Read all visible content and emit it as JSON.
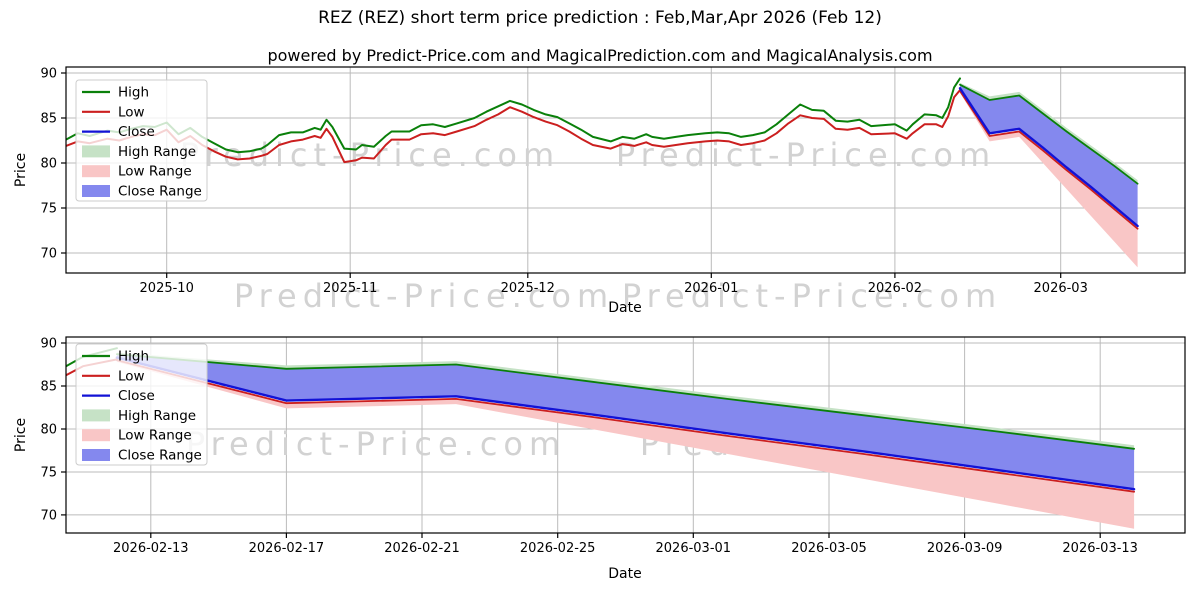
{
  "title": "REZ (REZ) short term price prediction : Feb,Mar,Apr 2026 (Feb 12)",
  "subtitle": "powered by Predict-Price.com and MagicalPrediction.com and MagicalAnalysis.com",
  "watermark": "Predict-Price.com",
  "colors": {
    "high": "#0a800a",
    "low": "#cb1f1f",
    "close": "#1212d6",
    "high_range": "#c6e2c6",
    "low_range": "#f9c6c6",
    "close_range": "#8488ee",
    "grid": "#bbbbbb",
    "spine": "#000000",
    "text": "#000000",
    "watermark": "#d2d2d2",
    "legend_border": "#cccccc"
  },
  "chart_data": {
    "type": "line",
    "legend": [
      {
        "label": "High",
        "swatch": "line",
        "color": "high"
      },
      {
        "label": "Low",
        "swatch": "line",
        "color": "low"
      },
      {
        "label": "Close",
        "swatch": "line",
        "color": "close"
      },
      {
        "label": "High Range",
        "swatch": "patch",
        "color": "high_range"
      },
      {
        "label": "Low Range",
        "swatch": "patch",
        "color": "low_range"
      },
      {
        "label": "Close Range",
        "swatch": "patch",
        "color": "close_range"
      }
    ],
    "charts": [
      {
        "name": "overview",
        "ylabel": "Price",
        "xlabel": "Date",
        "ylim": [
          67.78,
          90.67
        ],
        "yticks": [
          70,
          75,
          80,
          85,
          90
        ],
        "xlim": [
          "2025-09-14",
          "2026-03-22"
        ],
        "xticks": [
          {
            "date": "2025-10-01",
            "label": "2025-10"
          },
          {
            "date": "2025-11-01",
            "label": "2025-11"
          },
          {
            "date": "2025-12-01",
            "label": "2025-12"
          },
          {
            "date": "2026-01-01",
            "label": "2026-01"
          },
          {
            "date": "2026-02-01",
            "label": "2026-02"
          },
          {
            "date": "2026-03-01",
            "label": "2026-03"
          }
        ]
      },
      {
        "name": "prediction-zoom",
        "ylabel": "Price",
        "xlabel": "Date",
        "ylim": [
          67.9,
          90.7
        ],
        "yticks": [
          70,
          75,
          80,
          85,
          90
        ],
        "xlim": [
          "2026-02-10T12:00:00Z",
          "2026-03-15T12:00:00Z"
        ],
        "xticks": [
          {
            "date": "2026-02-13",
            "label": "2026-02-13"
          },
          {
            "date": "2026-02-17",
            "label": "2026-02-17"
          },
          {
            "date": "2026-02-21",
            "label": "2026-02-21"
          },
          {
            "date": "2026-02-25",
            "label": "2026-02-25"
          },
          {
            "date": "2026-03-01",
            "label": "2026-03-01"
          },
          {
            "date": "2026-03-05",
            "label": "2026-03-05"
          },
          {
            "date": "2026-03-09",
            "label": "2026-03-09"
          },
          {
            "date": "2026-03-13",
            "label": "2026-03-13"
          }
        ]
      }
    ],
    "history": {
      "dates": [
        "2025-09-14",
        "2025-09-16",
        "2025-09-18",
        "2025-09-21",
        "2025-09-23",
        "2025-09-25",
        "2025-09-27",
        "2025-09-29",
        "2025-10-01",
        "2025-10-03",
        "2025-10-05",
        "2025-10-07",
        "2025-10-09",
        "2025-10-11",
        "2025-10-13",
        "2025-10-15",
        "2025-10-17",
        "2025-10-18",
        "2025-10-20",
        "2025-10-22",
        "2025-10-24",
        "2025-10-26",
        "2025-10-27",
        "2025-10-28",
        "2025-10-29",
        "2025-10-31",
        "2025-11-02",
        "2025-11-03",
        "2025-11-05",
        "2025-11-07",
        "2025-11-08",
        "2025-11-11",
        "2025-11-13",
        "2025-11-15",
        "2025-11-17",
        "2025-11-19",
        "2025-11-22",
        "2025-11-24",
        "2025-11-26",
        "2025-11-28",
        "2025-11-30",
        "2025-12-02",
        "2025-12-04",
        "2025-12-06",
        "2025-12-08",
        "2025-12-10",
        "2025-12-12",
        "2025-12-15",
        "2025-12-17",
        "2025-12-19",
        "2025-12-21",
        "2025-12-22",
        "2025-12-24",
        "2025-12-26",
        "2025-12-28",
        "2025-12-31",
        "2026-01-02",
        "2026-01-04",
        "2026-01-06",
        "2026-01-08",
        "2026-01-10",
        "2026-01-12",
        "2026-01-14",
        "2026-01-16",
        "2026-01-18",
        "2026-01-20",
        "2026-01-22",
        "2026-01-24",
        "2026-01-26",
        "2026-01-28",
        "2026-02-01",
        "2026-02-03",
        "2026-02-04",
        "2026-02-06",
        "2026-02-08",
        "2026-02-09",
        "2026-02-10",
        "2026-02-11",
        "2026-02-12"
      ],
      "high": [
        82.6,
        83.3,
        83.0,
        83.6,
        83.4,
        83.8,
        84.1,
        84.0,
        84.5,
        83.2,
        83.9,
        82.9,
        82.2,
        81.5,
        81.2,
        81.3,
        81.6,
        82.0,
        83.1,
        83.4,
        83.4,
        83.9,
        83.7,
        84.8,
        84.0,
        81.6,
        81.5,
        82.0,
        81.8,
        83.0,
        83.5,
        83.5,
        84.2,
        84.3,
        84.0,
        84.4,
        85.0,
        85.7,
        86.3,
        86.9,
        86.5,
        85.9,
        85.4,
        85.1,
        84.4,
        83.7,
        82.9,
        82.4,
        82.9,
        82.7,
        83.2,
        82.9,
        82.7,
        82.9,
        83.1,
        83.3,
        83.4,
        83.3,
        82.9,
        83.1,
        83.4,
        84.3,
        85.4,
        86.5,
        85.9,
        85.8,
        84.7,
        84.6,
        84.8,
        84.1,
        84.3,
        83.6,
        84.3,
        85.4,
        85.3,
        85.0,
        86.2,
        88.4,
        89.4
      ],
      "low": [
        81.9,
        82.4,
        82.2,
        82.7,
        82.5,
        82.9,
        83.2,
        83.1,
        83.7,
        82.3,
        83.0,
        82.0,
        81.3,
        80.7,
        80.4,
        80.5,
        80.8,
        81.0,
        82.0,
        82.4,
        82.6,
        83.0,
        82.8,
        83.8,
        82.9,
        80.1,
        80.3,
        80.6,
        80.5,
        82.0,
        82.6,
        82.6,
        83.2,
        83.3,
        83.1,
        83.5,
        84.1,
        84.8,
        85.4,
        86.2,
        85.7,
        85.1,
        84.6,
        84.2,
        83.5,
        82.7,
        82.0,
        81.6,
        82.1,
        81.9,
        82.3,
        82.0,
        81.8,
        82.0,
        82.2,
        82.4,
        82.5,
        82.4,
        82.0,
        82.2,
        82.5,
        83.3,
        84.4,
        85.3,
        85.0,
        84.9,
        83.8,
        83.7,
        83.9,
        83.2,
        83.3,
        82.7,
        83.3,
        84.3,
        84.3,
        84.0,
        85.2,
        87.3,
        88.1
      ]
    },
    "prediction": {
      "dates": [
        "2026-02-12",
        "2026-02-17",
        "2026-02-22",
        "2026-02-26",
        "2026-03-02",
        "2026-03-06",
        "2026-03-10",
        "2026-03-14"
      ],
      "close": [
        88.3,
        83.3,
        83.8,
        81.7,
        79.5,
        77.4,
        75.2,
        73.0
      ],
      "low": [
        88.0,
        83.0,
        83.5,
        81.4,
        79.2,
        77.1,
        74.9,
        72.7
      ],
      "high": [
        88.7,
        87.0,
        87.5,
        85.5,
        83.5,
        81.6,
        79.7,
        77.7
      ],
      "close_upper": [
        88.7,
        87.0,
        87.5,
        85.5,
        83.5,
        81.6,
        79.7,
        77.7
      ],
      "close_lower": [
        88.2,
        83.3,
        83.8,
        81.7,
        79.5,
        77.4,
        75.2,
        73.0
      ],
      "high_upper": [
        88.9,
        87.4,
        87.9,
        85.9,
        83.9,
        82.0,
        80.1,
        78.1
      ],
      "high_lower": [
        88.5,
        86.6,
        87.1,
        85.1,
        83.1,
        81.2,
        79.3,
        77.3
      ],
      "low_upper": [
        88.1,
        83.1,
        83.6,
        81.5,
        79.3,
        77.2,
        75.0,
        72.8
      ],
      "low_lower": [
        87.8,
        82.4,
        82.9,
        80.0,
        77.1,
        74.2,
        71.3,
        68.4
      ]
    }
  }
}
